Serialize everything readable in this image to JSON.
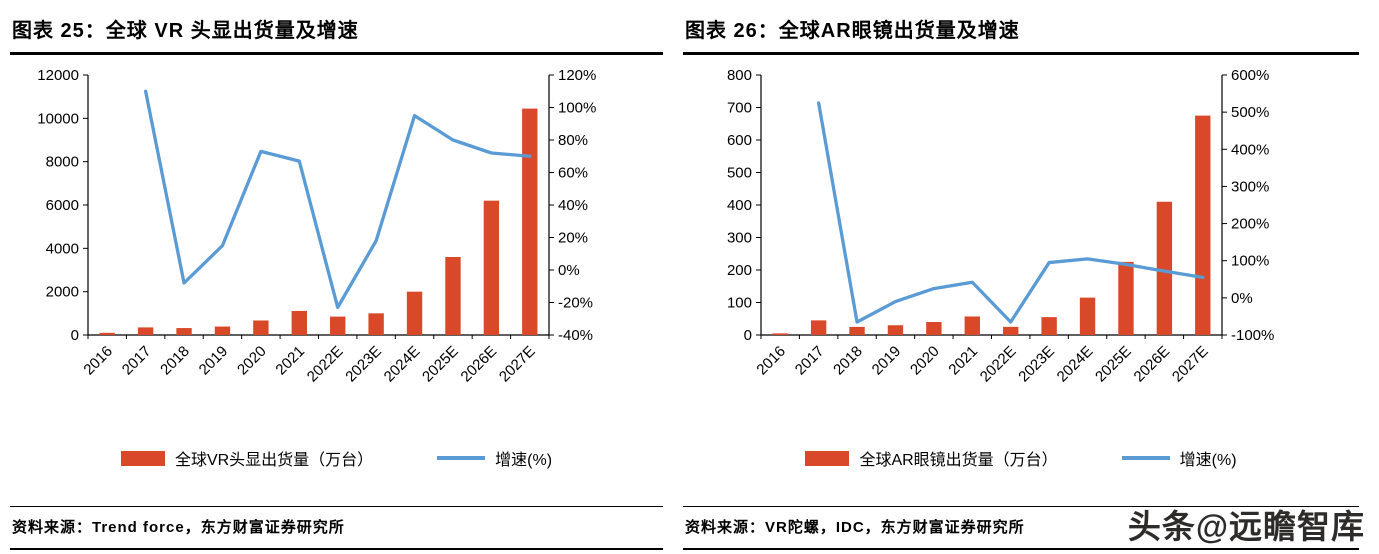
{
  "colors": {
    "bar": "#D94828",
    "line": "#5B9BD5",
    "axis": "#000000",
    "watermark_text": "#2E2C2B"
  },
  "watermark": "头条@远瞻智库",
  "chart_data": [
    {
      "type": "bar",
      "combo": "bar+line",
      "title": "图表 25：全球 VR 头显出货量及增速",
      "source": "资料来源：Trend force，东方财富证券研究所",
      "categories": [
        "2016",
        "2017",
        "2018",
        "2019",
        "2020",
        "2021",
        "2022E",
        "2023E",
        "2024E",
        "2025E",
        "2026E",
        "2027E"
      ],
      "series": [
        {
          "name": "全球VR头显出货量（万台）",
          "type": "bar",
          "axis": "left",
          "values": [
            100,
            350,
            320,
            390,
            670,
            1110,
            850,
            1000,
            2000,
            3600,
            6200,
            10450
          ]
        },
        {
          "name": "增速(%)",
          "type": "line",
          "axis": "right",
          "values": [
            null,
            110,
            -8,
            15,
            73,
            67,
            -23,
            18,
            95,
            80,
            72,
            70
          ]
        }
      ],
      "left_axis": {
        "min": 0,
        "max": 12000,
        "step": 2000
      },
      "right_axis": {
        "min": -40,
        "max": 120,
        "step": 20,
        "suffix": "%"
      },
      "legend_position": "bottom",
      "grid": false
    },
    {
      "type": "bar",
      "combo": "bar+line",
      "title": "图表 26：全球AR眼镜出货量及增速",
      "source": "资料来源：VR陀螺，IDC，东方财富证券研究所",
      "categories": [
        "2016",
        "2017",
        "2018",
        "2019",
        "2020",
        "2021",
        "2022E",
        "2023E",
        "2024E",
        "2025E",
        "2026E",
        "2027E"
      ],
      "series": [
        {
          "name": "全球AR眼镜出货量（万台）",
          "type": "bar",
          "axis": "left",
          "values": [
            5,
            45,
            25,
            30,
            40,
            57,
            25,
            55,
            115,
            225,
            410,
            675
          ]
        },
        {
          "name": "增速(%)",
          "type": "line",
          "axis": "right",
          "values": [
            null,
            525,
            -65,
            -10,
            25,
            42,
            -65,
            95,
            105,
            90,
            72,
            55
          ]
        }
      ],
      "left_axis": {
        "min": 0,
        "max": 800,
        "step": 100
      },
      "right_axis": {
        "min": -100,
        "max": 600,
        "step": 100,
        "suffix": "%"
      },
      "legend_position": "bottom",
      "grid": false
    }
  ]
}
